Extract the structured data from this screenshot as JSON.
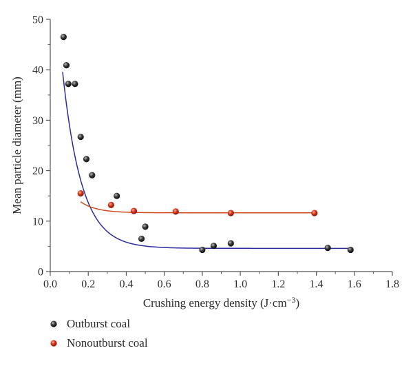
{
  "chart_data": {
    "type": "scatter",
    "xlabel": "Crushing energy density (J·cm⁻³)",
    "ylabel": "Mean particle diameter (mm)",
    "xlim": [
      0.0,
      1.8
    ],
    "ylim": [
      0,
      50
    ],
    "xticks": [
      "0.0",
      "0.2",
      "0.4",
      "0.6",
      "0.8",
      "1.0",
      "1.2",
      "1.4",
      "1.6",
      "1.8"
    ],
    "yticks": [
      "0",
      "10",
      "20",
      "30",
      "40",
      "50"
    ],
    "grid": false,
    "legend_position": "bottom-left",
    "series": [
      {
        "name": "Outburst coal",
        "marker_color": "#1a1a1a",
        "fit_color": "#2a2aa0",
        "points": [
          {
            "x": 0.07,
            "y": 46.5
          },
          {
            "x": 0.085,
            "y": 40.9
          },
          {
            "x": 0.095,
            "y": 37.2
          },
          {
            "x": 0.13,
            "y": 37.2
          },
          {
            "x": 0.16,
            "y": 26.7
          },
          {
            "x": 0.19,
            "y": 22.3
          },
          {
            "x": 0.22,
            "y": 19.1
          },
          {
            "x": 0.35,
            "y": 15.0
          },
          {
            "x": 0.48,
            "y": 6.5
          },
          {
            "x": 0.5,
            "y": 8.9
          },
          {
            "x": 0.8,
            "y": 4.3
          },
          {
            "x": 0.86,
            "y": 5.1
          },
          {
            "x": 0.95,
            "y": 5.6
          },
          {
            "x": 1.46,
            "y": 4.7
          },
          {
            "x": 1.58,
            "y": 4.3
          }
        ],
        "fit": {
          "model": "exponential",
          "y0": 4.6,
          "A": 67.0,
          "t": 0.1,
          "x_range": [
            0.065,
            1.585
          ]
        }
      },
      {
        "name": "Nonoutburst coal",
        "marker_color": "#d02810",
        "fit_color": "#d04a1e",
        "points": [
          {
            "x": 0.16,
            "y": 15.5
          },
          {
            "x": 0.32,
            "y": 13.2
          },
          {
            "x": 0.44,
            "y": 12.0
          },
          {
            "x": 0.66,
            "y": 11.9
          },
          {
            "x": 0.95,
            "y": 11.6
          },
          {
            "x": 1.39,
            "y": 11.6
          }
        ],
        "fit": {
          "model": "exponential",
          "y0": 11.65,
          "A": 15.0,
          "t": 0.083,
          "x_range": [
            0.16,
            1.39
          ]
        }
      }
    ]
  }
}
